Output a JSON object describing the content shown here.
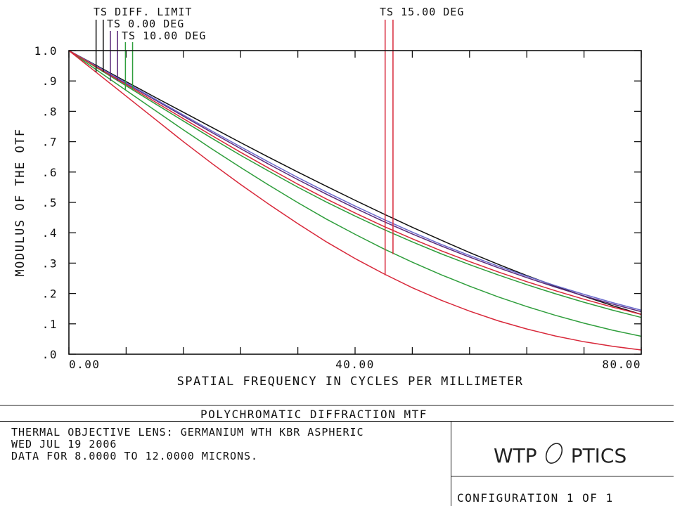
{
  "chart_data": {
    "type": "line",
    "xlabel": "SPATIAL FREQUENCY IN CYCLES PER MILLIMETER",
    "ylabel": "MODULUS OF THE OTF",
    "xlim": [
      0,
      80
    ],
    "ylim": [
      0,
      1
    ],
    "x_tick_labels": [
      "0.00",
      "40.00",
      "80.00"
    ],
    "y_tick_labels": [
      "1.0",
      ".9",
      ".8",
      ".7",
      ".6",
      ".5",
      ".4",
      ".3",
      ".2",
      ".1",
      ".0"
    ],
    "legend": [
      "TS DIFF. LIMIT",
      "TS 0.00 DEG",
      "TS 10.00 DEG",
      "TS 15.00 DEG"
    ],
    "colors": {
      "diff_limit": "#111111",
      "deg0": "#5a2a7a",
      "deg10": "#2f9e3c",
      "deg15": "#d8283a"
    },
    "series": [
      {
        "name": "TS DIFF. LIMIT",
        "color": "#111111",
        "x": [
          0,
          4,
          8,
          12,
          16,
          20,
          24,
          28,
          32,
          36,
          40,
          44,
          48,
          52,
          56,
          60,
          64,
          68,
          72,
          76,
          80
        ],
        "y": [
          1.0,
          0.949,
          0.898,
          0.847,
          0.797,
          0.747,
          0.697,
          0.648,
          0.6,
          0.553,
          0.507,
          0.462,
          0.418,
          0.376,
          0.335,
          0.296,
          0.259,
          0.224,
          0.191,
          0.16,
          0.131
        ]
      },
      {
        "name": "TS 0.00 DEG (T)",
        "color": "#5a2a7a",
        "x": [
          0,
          4,
          8,
          12,
          16,
          20,
          24,
          28,
          32,
          36,
          40,
          44,
          48,
          52,
          56,
          60,
          64,
          68,
          72,
          76,
          80
        ],
        "y": [
          1.0,
          0.946,
          0.892,
          0.838,
          0.784,
          0.73,
          0.677,
          0.625,
          0.575,
          0.527,
          0.481,
          0.437,
          0.396,
          0.357,
          0.32,
          0.285,
          0.252,
          0.221,
          0.192,
          0.165,
          0.14
        ]
      },
      {
        "name": "TS 0.00 DEG (S)",
        "color": "#6a6acc",
        "x": [
          0,
          4,
          8,
          12,
          16,
          20,
          24,
          28,
          32,
          36,
          40,
          44,
          48,
          52,
          56,
          60,
          64,
          68,
          72,
          76,
          80
        ],
        "y": [
          1.0,
          0.947,
          0.894,
          0.841,
          0.788,
          0.735,
          0.683,
          0.632,
          0.582,
          0.534,
          0.488,
          0.444,
          0.402,
          0.362,
          0.325,
          0.29,
          0.257,
          0.226,
          0.197,
          0.17,
          0.145
        ]
      },
      {
        "name": "TS 10.00 DEG (T)",
        "color": "#2f9e3c",
        "x": [
          0,
          4,
          8,
          12,
          16,
          20,
          24,
          28,
          32,
          36,
          40,
          44,
          48,
          52,
          56,
          60,
          64,
          68,
          72,
          76,
          80
        ],
        "y": [
          1.0,
          0.942,
          0.884,
          0.826,
          0.768,
          0.711,
          0.655,
          0.602,
          0.55,
          0.501,
          0.455,
          0.411,
          0.37,
          0.331,
          0.295,
          0.261,
          0.229,
          0.199,
          0.171,
          0.145,
          0.121
        ]
      },
      {
        "name": "TS 10.00 DEG (S)",
        "color": "#2f9e3c",
        "x": [
          0,
          4,
          8,
          12,
          16,
          20,
          24,
          28,
          32,
          36,
          40,
          44,
          48,
          52,
          56,
          60,
          64,
          68,
          72,
          76,
          80
        ],
        "y": [
          1.0,
          0.934,
          0.869,
          0.804,
          0.739,
          0.676,
          0.615,
          0.556,
          0.499,
          0.445,
          0.395,
          0.347,
          0.303,
          0.262,
          0.224,
          0.189,
          0.157,
          0.128,
          0.102,
          0.079,
          0.059
        ]
      },
      {
        "name": "TS 15.00 DEG (T)",
        "color": "#d8283a",
        "x": [
          0,
          4,
          8,
          12,
          16,
          20,
          24,
          28,
          32,
          36,
          40,
          44,
          48,
          52,
          56,
          60,
          64,
          68,
          72,
          76,
          80
        ],
        "y": [
          1.0,
          0.944,
          0.888,
          0.832,
          0.776,
          0.72,
          0.665,
          0.612,
          0.56,
          0.511,
          0.465,
          0.421,
          0.38,
          0.341,
          0.305,
          0.271,
          0.239,
          0.209,
          0.181,
          0.155,
          0.131
        ]
      },
      {
        "name": "TS 15.00 DEG (S)",
        "color": "#d8283a",
        "x": [
          0,
          4,
          8,
          12,
          16,
          20,
          24,
          28,
          32,
          36,
          40,
          44,
          48,
          52,
          56,
          60,
          64,
          68,
          72,
          76,
          80
        ],
        "y": [
          1.0,
          0.925,
          0.85,
          0.775,
          0.7,
          0.628,
          0.559,
          0.493,
          0.43,
          0.37,
          0.315,
          0.265,
          0.219,
          0.178,
          0.142,
          0.11,
          0.083,
          0.06,
          0.041,
          0.026,
          0.014
        ]
      }
    ],
    "legend_markers": [
      {
        "x": [
          3.8,
          4.8
        ],
        "y": [
          0.93,
          0.93
        ],
        "color": "#111111"
      },
      {
        "x": [
          5.8,
          6.8
        ],
        "y": [
          0.9,
          0.9
        ],
        "color": "#5a2a7a"
      },
      {
        "x": [
          7.9,
          8.9
        ],
        "y": [
          0.87,
          0.87
        ],
        "color": "#2f9e3c"
      },
      {
        "x": [
          44.2,
          45.3
        ],
        "y": [
          0.26,
          0.33
        ],
        "color": "#d8283a"
      }
    ]
  },
  "footer": {
    "title": "POLYCHROMATIC DIFFRACTION MTF",
    "line1": "THERMAL OBJECTIVE LENS: GERMANIUM WTH KBR ASPHERIC",
    "line2": "WED JUL 19 2006",
    "line3": "DATA FOR 8.0000 TO 12.0000 MICRONS.",
    "logo_left": "WTP",
    "logo_right": "PTICS",
    "config": "CONFIGURATION 1 OF 1"
  }
}
